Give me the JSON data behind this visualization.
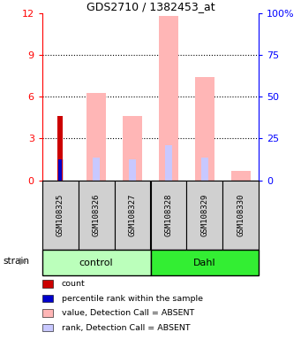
{
  "title": "GDS2710 / 1382453_at",
  "samples": [
    "GSM108325",
    "GSM108326",
    "GSM108327",
    "GSM108328",
    "GSM108329",
    "GSM108330"
  ],
  "group_control": {
    "name": "control",
    "indices": [
      0,
      1,
      2
    ],
    "color": "#bbffbb"
  },
  "group_dahl": {
    "name": "Dahl",
    "indices": [
      3,
      4,
      5
    ],
    "color": "#33ee33"
  },
  "ylim_left": [
    0,
    12
  ],
  "ylim_right": [
    0,
    100
  ],
  "yticks_left": [
    0,
    3,
    6,
    9,
    12
  ],
  "yticks_right": [
    0,
    25,
    50,
    75,
    100
  ],
  "ytick_labels_right": [
    "0",
    "25",
    "50",
    "75",
    "100%"
  ],
  "grid_lines": [
    3,
    6,
    9
  ],
  "value_bars": [
    0.0,
    6.3,
    4.6,
    11.8,
    7.4,
    0.7
  ],
  "rank_bars": [
    1.5,
    1.6,
    1.5,
    2.5,
    1.6,
    0.0
  ],
  "count_bars": [
    4.6,
    0.0,
    0.0,
    0.0,
    0.0,
    0.0
  ],
  "pct_bars": [
    1.5,
    0.0,
    0.0,
    0.0,
    0.0,
    0.0
  ],
  "value_color": "#ffb6b6",
  "rank_color": "#c8c8ff",
  "count_color": "#cc0000",
  "pct_color": "#0000cc",
  "value_bar_width": 0.55,
  "rank_bar_width": 0.18,
  "count_bar_width": 0.14,
  "pct_bar_width": 0.1,
  "legend_items": [
    {
      "label": "count",
      "color": "#cc0000"
    },
    {
      "label": "percentile rank within the sample",
      "color": "#0000cc"
    },
    {
      "label": "value, Detection Call = ABSENT",
      "color": "#ffb6b6"
    },
    {
      "label": "rank, Detection Call = ABSENT",
      "color": "#c8c8ff"
    }
  ]
}
